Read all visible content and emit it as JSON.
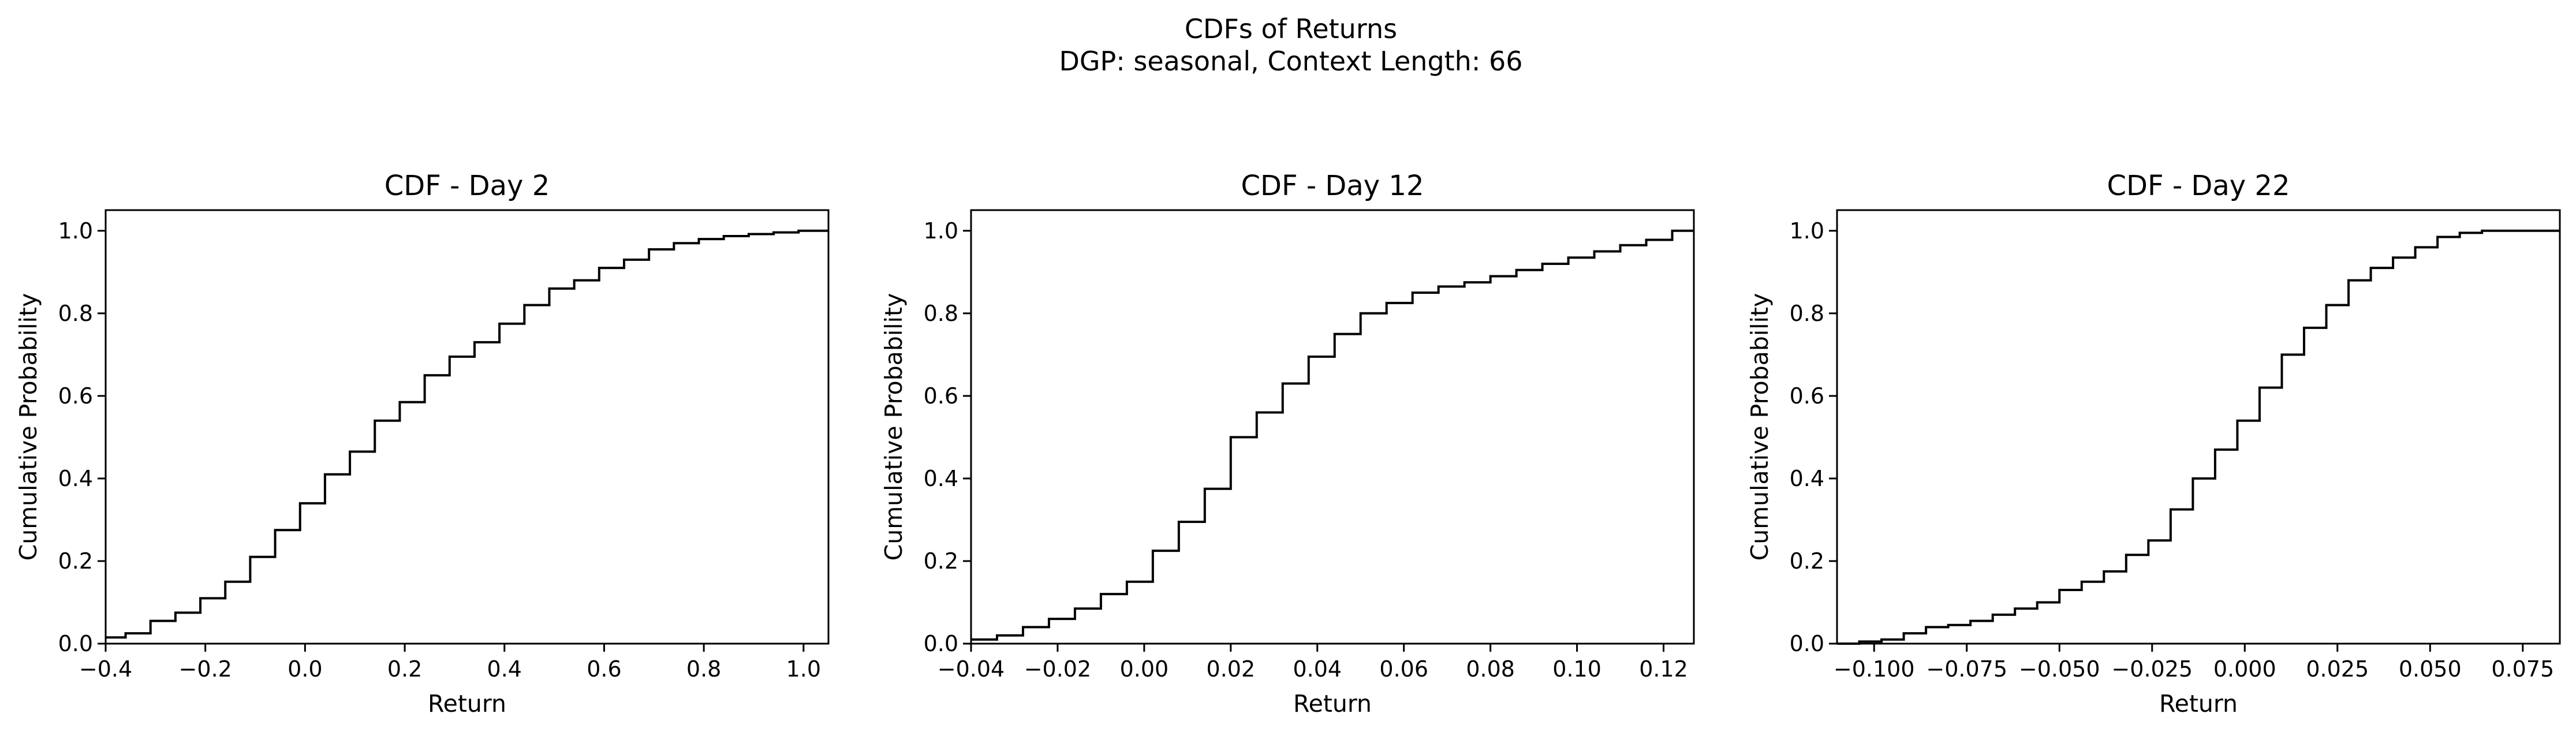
{
  "figure": {
    "title_line1": "CDFs of Returns",
    "title_line2": "DGP: seasonal, Context Length: 66"
  },
  "chart_data": [
    {
      "type": "line",
      "step": "post",
      "title": "CDF - Day 2",
      "xlabel": "Return",
      "ylabel": "Cumulative Probability",
      "xlim": [
        -0.4,
        1.05
      ],
      "ylim": [
        0.0,
        1.05
      ],
      "grid": false,
      "color": "#000000",
      "xticks": [
        -0.4,
        -0.2,
        0.0,
        0.2,
        0.4,
        0.6,
        0.8,
        1.0
      ],
      "xtick_labels": [
        "−0.4",
        "−0.2",
        "0.0",
        "0.2",
        "0.4",
        "0.6",
        "0.8",
        "1.0"
      ],
      "yticks": [
        0.0,
        0.2,
        0.4,
        0.6,
        0.8,
        1.0
      ],
      "ytick_labels": [
        "0.0",
        "0.2",
        "0.4",
        "0.6",
        "0.8",
        "1.0"
      ],
      "x": [
        -0.4,
        -0.36,
        -0.31,
        -0.26,
        -0.21,
        -0.16,
        -0.11,
        -0.06,
        -0.01,
        0.04,
        0.09,
        0.14,
        0.19,
        0.24,
        0.29,
        0.34,
        0.39,
        0.44,
        0.49,
        0.54,
        0.59,
        0.64,
        0.69,
        0.74,
        0.79,
        0.84,
        0.89,
        0.94,
        0.99,
        1.05
      ],
      "y": [
        0.015,
        0.025,
        0.055,
        0.075,
        0.11,
        0.15,
        0.21,
        0.275,
        0.34,
        0.41,
        0.465,
        0.54,
        0.585,
        0.65,
        0.695,
        0.73,
        0.775,
        0.82,
        0.86,
        0.88,
        0.91,
        0.93,
        0.955,
        0.97,
        0.98,
        0.987,
        0.992,
        0.996,
        1.0,
        1.0
      ]
    },
    {
      "type": "line",
      "step": "post",
      "title": "CDF - Day 12",
      "xlabel": "Return",
      "ylabel": "Cumulative Probability",
      "xlim": [
        -0.04,
        0.127
      ],
      "ylim": [
        0.0,
        1.05
      ],
      "grid": false,
      "color": "#000000",
      "xticks": [
        -0.04,
        -0.02,
        0.0,
        0.02,
        0.04,
        0.06,
        0.08,
        0.1,
        0.12
      ],
      "xtick_labels": [
        "−0.04",
        "−0.02",
        "0.00",
        "0.02",
        "0.04",
        "0.06",
        "0.08",
        "0.10",
        "0.12"
      ],
      "yticks": [
        0.0,
        0.2,
        0.4,
        0.6,
        0.8,
        1.0
      ],
      "ytick_labels": [
        "0.0",
        "0.2",
        "0.4",
        "0.6",
        "0.8",
        "1.0"
      ],
      "x": [
        -0.04,
        -0.034,
        -0.028,
        -0.022,
        -0.016,
        -0.01,
        -0.004,
        0.002,
        0.008,
        0.014,
        0.02,
        0.026,
        0.032,
        0.038,
        0.044,
        0.05,
        0.056,
        0.062,
        0.068,
        0.074,
        0.08,
        0.086,
        0.092,
        0.098,
        0.104,
        0.11,
        0.116,
        0.122,
        0.127
      ],
      "y": [
        0.01,
        0.02,
        0.04,
        0.06,
        0.085,
        0.12,
        0.15,
        0.225,
        0.295,
        0.375,
        0.5,
        0.56,
        0.63,
        0.695,
        0.75,
        0.8,
        0.825,
        0.85,
        0.865,
        0.875,
        0.89,
        0.905,
        0.92,
        0.935,
        0.95,
        0.965,
        0.978,
        1.0,
        1.0
      ]
    },
    {
      "type": "line",
      "step": "post",
      "title": "CDF - Day 22",
      "xlabel": "Return",
      "ylabel": "Cumulative Probability",
      "xlim": [
        -0.11,
        0.085
      ],
      "ylim": [
        0.0,
        1.05
      ],
      "grid": false,
      "color": "#000000",
      "xticks": [
        -0.1,
        -0.075,
        -0.05,
        -0.025,
        0.0,
        0.025,
        0.05,
        0.075
      ],
      "xtick_labels": [
        "−0.100",
        "−0.075",
        "−0.050",
        "−0.025",
        "0.000",
        "0.025",
        "0.050",
        "0.075"
      ],
      "yticks": [
        0.0,
        0.2,
        0.4,
        0.6,
        0.8,
        1.0
      ],
      "ytick_labels": [
        "0.0",
        "0.2",
        "0.4",
        "0.6",
        "0.8",
        "1.0"
      ],
      "x": [
        -0.11,
        -0.104,
        -0.098,
        -0.092,
        -0.086,
        -0.08,
        -0.074,
        -0.068,
        -0.062,
        -0.056,
        -0.05,
        -0.044,
        -0.038,
        -0.032,
        -0.026,
        -0.02,
        -0.014,
        -0.008,
        -0.002,
        0.004,
        0.01,
        0.016,
        0.022,
        0.028,
        0.034,
        0.04,
        0.046,
        0.052,
        0.058,
        0.064,
        0.07,
        0.076,
        0.085
      ],
      "y": [
        0.0,
        0.005,
        0.01,
        0.025,
        0.04,
        0.045,
        0.055,
        0.07,
        0.085,
        0.1,
        0.13,
        0.15,
        0.175,
        0.215,
        0.25,
        0.325,
        0.4,
        0.47,
        0.54,
        0.62,
        0.7,
        0.765,
        0.82,
        0.88,
        0.91,
        0.935,
        0.96,
        0.985,
        0.995,
        1.0,
        1.0,
        1.0,
        1.0
      ]
    }
  ]
}
